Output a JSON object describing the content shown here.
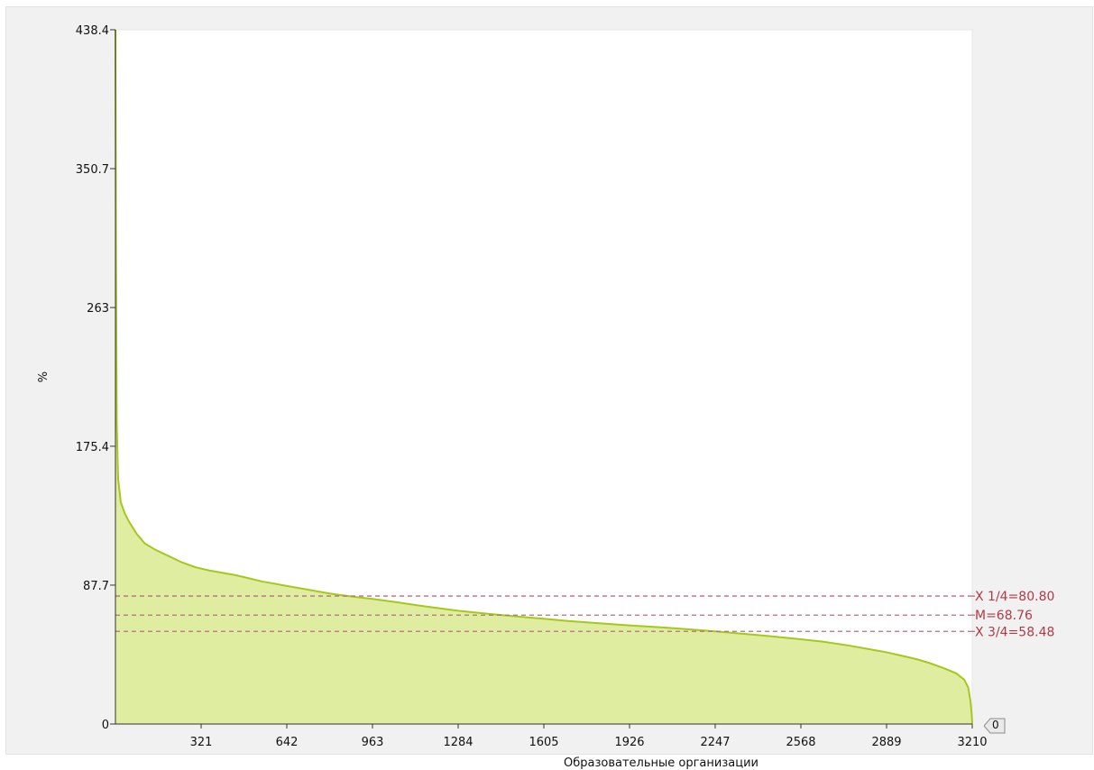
{
  "chart_data": {
    "type": "area",
    "title": "",
    "xlabel": "Образовательные организации",
    "ylabel": "%",
    "xlim": [
      0,
      3210
    ],
    "ylim": [
      0,
      438.4
    ],
    "x_ticks": [
      "321",
      "642",
      "963",
      "1284",
      "1605",
      "1926",
      "2247",
      "2568",
      "2889",
      "3210"
    ],
    "y_ticks": [
      "0",
      "87.7",
      "175.4",
      "263",
      "350.7",
      "438.4"
    ],
    "grid": false,
    "series": [
      {
        "x": [
          0,
          2,
          5,
          10,
          20,
          35,
          50,
          80,
          110,
          150,
          200,
          250,
          300,
          350,
          400,
          450,
          500,
          550,
          600,
          642,
          700,
          750,
          800,
          850,
          900,
          963,
          1050,
          1150,
          1284,
          1400,
          1500,
          1605,
          1700,
          1800,
          1926,
          2050,
          2150,
          2247,
          2350,
          2450,
          2568,
          2650,
          2750,
          2850,
          2889,
          2950,
          3000,
          3050,
          3100,
          3150,
          3180,
          3195,
          3203,
          3208,
          3210
        ],
        "y": [
          438.4,
          300,
          190,
          155,
          140,
          133,
          128,
          120,
          114,
          110,
          106,
          102,
          99,
          97,
          95.5,
          94,
          92,
          90,
          88.5,
          87.2,
          85.5,
          84,
          82.5,
          81.3,
          80.2,
          79,
          77,
          74.5,
          71.5,
          69.5,
          68,
          66.5,
          65,
          63.8,
          62.3,
          61,
          59.8,
          58.5,
          57,
          55.5,
          53.5,
          52,
          49.5,
          46.5,
          45.3,
          43,
          41,
          38.5,
          35.5,
          32,
          28,
          23,
          15,
          6,
          0
        ],
        "color": "#a5c81e",
        "fill": "#dfeda1"
      }
    ],
    "reference_lines": [
      {
        "label": "X 1/4=80.80",
        "value": 80.8,
        "color": "#b86e7e",
        "text_color": "#b03a48"
      },
      {
        "label": "M=68.76",
        "value": 68.76,
        "color": "#b86e7e",
        "text_color": "#b03a48"
      },
      {
        "label": "X 3/4=58.48",
        "value": 58.48,
        "color": "#b86e7e",
        "text_color": "#b03a48"
      }
    ]
  },
  "scroll_badge": {
    "label": "0"
  }
}
